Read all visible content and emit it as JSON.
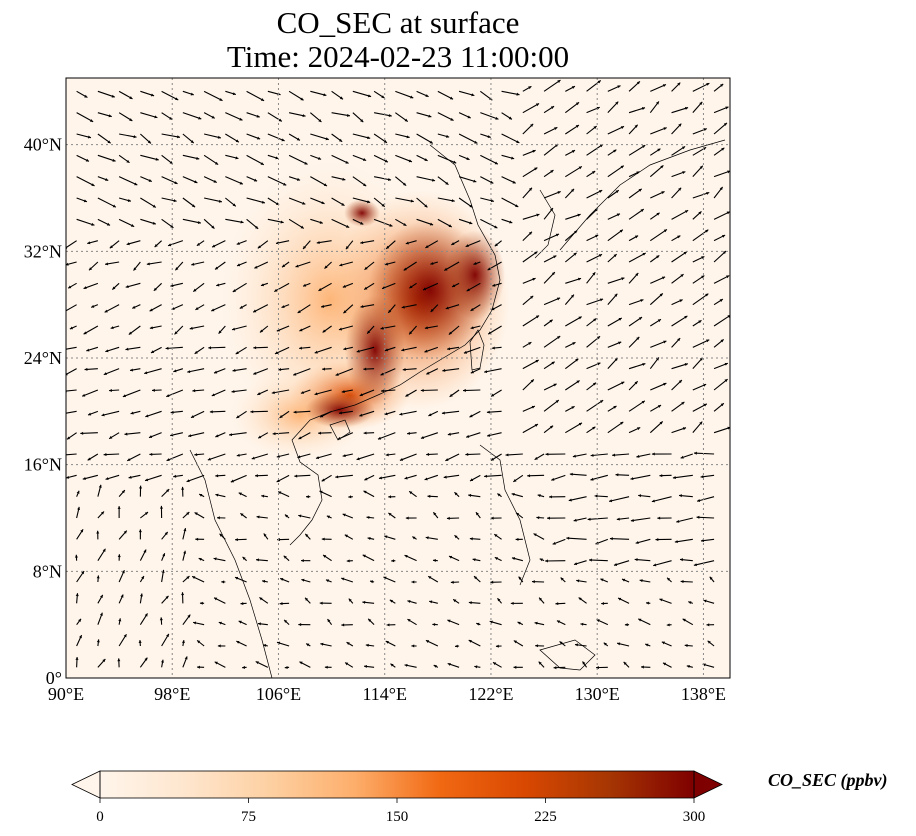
{
  "title": {
    "line1": "CO_SEC at surface",
    "line2": "Time: 2024-02-23 11:00:00"
  },
  "map": {
    "extent": {
      "lon": [
        90,
        140
      ],
      "lat": [
        0,
        45
      ]
    },
    "lon_ticks": [
      {
        "value": 90,
        "label": "90°E"
      },
      {
        "value": 98,
        "label": "98°E"
      },
      {
        "value": 106,
        "label": "106°E"
      },
      {
        "value": 114,
        "label": "114°E"
      },
      {
        "value": 122,
        "label": "122°E"
      },
      {
        "value": 130,
        "label": "130°E"
      },
      {
        "value": 138,
        "label": "138°E"
      }
    ],
    "lat_ticks": [
      {
        "value": 0,
        "label": "0°"
      },
      {
        "value": 8,
        "label": "8°N"
      },
      {
        "value": 16,
        "label": "16°N"
      },
      {
        "value": 24,
        "label": "24°N"
      },
      {
        "value": 32,
        "label": "32°N"
      },
      {
        "value": 40,
        "label": "40°N"
      }
    ],
    "gridlines": true,
    "background_color": "#fff5eb",
    "border_color": "#000000",
    "arrow_color": "#000000"
  },
  "colorbar": {
    "label": "CO_SEC (ppbv)",
    "ticks": [
      {
        "value": 0,
        "label": "0"
      },
      {
        "value": 75,
        "label": "75"
      },
      {
        "value": 150,
        "label": "150"
      },
      {
        "value": 225,
        "label": "225"
      },
      {
        "value": 300,
        "label": "300"
      }
    ],
    "range": [
      0,
      300
    ],
    "under_color": "#fff5eb",
    "over_color": "#7f0000",
    "colormap_stops": [
      "#fff5eb",
      "#fee6ce",
      "#fdd0a2",
      "#fdae6b",
      "#f16913",
      "#d94801",
      "#a63603",
      "#7f0000"
    ]
  }
}
